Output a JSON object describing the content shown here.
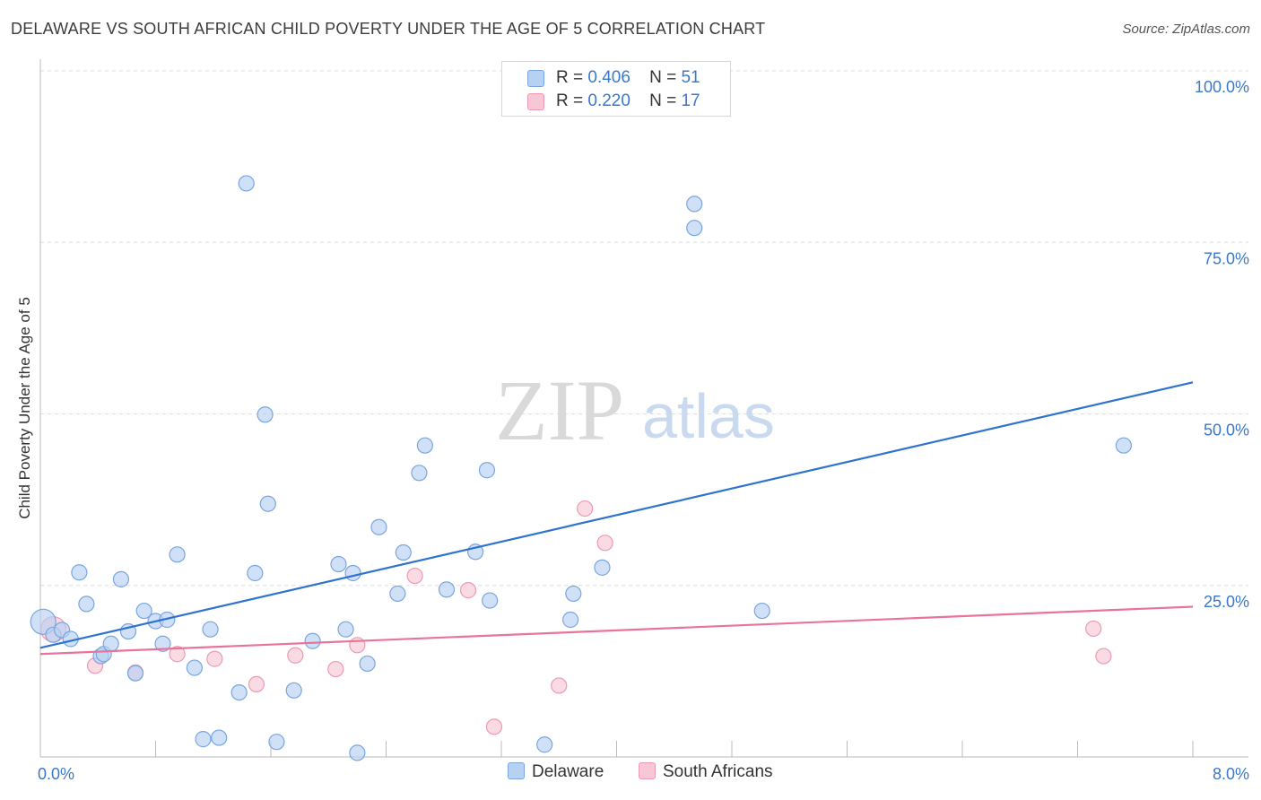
{
  "header": {
    "title": "DELAWARE VS SOUTH AFRICAN CHILD POVERTY UNDER THE AGE OF 5 CORRELATION CHART",
    "source": "Source: ZipAtlas.com"
  },
  "watermark": {
    "zip": "ZIP",
    "atlas": "atlas"
  },
  "legend_top": [
    {
      "r_label": "R =",
      "r_value": "0.406",
      "n_label": "N =",
      "n_value": "51"
    },
    {
      "r_label": "R =",
      "r_value": "0.220",
      "n_label": "N =",
      "n_value": "17"
    }
  ],
  "legend_bottom": [
    {
      "label": "Delaware"
    },
    {
      "label": "South Africans"
    }
  ],
  "colors": {
    "delaware_fill": "#b7d1f2",
    "delaware_stroke": "#7aa5de",
    "delaware_line": "#2f72cf",
    "sa_fill": "#f8c7d6",
    "sa_stroke": "#ec9ab3",
    "sa_line": "#e8739b",
    "tick_text": "#3a78c9",
    "grid": "#dddddd"
  },
  "chart_data": {
    "type": "scatter",
    "title": "DELAWARE VS SOUTH AFRICAN CHILD POVERTY UNDER THE AGE OF 5 CORRELATION CHART",
    "xlabel": "",
    "ylabel": "Child Poverty Under the Age of 5",
    "xlim": [
      0,
      8
    ],
    "ylim": [
      0,
      100
    ],
    "x_tick_labels": [
      {
        "value": 0,
        "label": "0.0%"
      },
      {
        "value": 8,
        "label": "8.0%"
      }
    ],
    "y_tick_labels": [
      {
        "value": 100,
        "label": "100.0%"
      },
      {
        "value": 75,
        "label": "75.0%"
      },
      {
        "value": 50,
        "label": "50.0%"
      },
      {
        "value": 25,
        "label": "25.0%"
      }
    ],
    "y_gridlines": [
      25,
      50,
      75,
      100
    ],
    "x_minor_ticks": [
      0.8,
      1.6,
      2.4,
      3.2,
      4.0,
      4.8,
      5.6,
      6.4,
      7.2,
      8.0
    ],
    "legend_position": "top-center",
    "series": [
      {
        "name": "Delaware",
        "r": 0.406,
        "n": 51,
        "trend": {
          "x0": 0,
          "y0": 15.9,
          "x1": 8,
          "y1": 54.6
        },
        "points": [
          [
            0.02,
            19.7,
            "large"
          ],
          [
            0.09,
            17.8
          ],
          [
            0.15,
            18.5
          ],
          [
            0.21,
            17.2
          ],
          [
            0.27,
            26.9
          ],
          [
            0.32,
            22.3
          ],
          [
            0.42,
            14.7
          ],
          [
            0.44,
            15.0
          ],
          [
            0.49,
            16.5
          ],
          [
            0.56,
            25.9
          ],
          [
            0.61,
            18.3
          ],
          [
            0.66,
            12.2
          ],
          [
            0.72,
            21.3
          ],
          [
            0.8,
            19.8
          ],
          [
            0.85,
            16.5
          ],
          [
            0.88,
            20.0
          ],
          [
            0.95,
            29.5
          ],
          [
            1.07,
            13.0
          ],
          [
            1.13,
            2.6
          ],
          [
            1.18,
            18.6
          ],
          [
            1.24,
            2.8
          ],
          [
            1.38,
            9.4
          ],
          [
            1.43,
            83.6
          ],
          [
            1.49,
            26.8
          ],
          [
            1.56,
            49.9
          ],
          [
            1.58,
            36.9
          ],
          [
            1.64,
            2.2
          ],
          [
            1.76,
            9.7
          ],
          [
            1.89,
            16.9
          ],
          [
            2.07,
            28.1
          ],
          [
            2.12,
            18.6
          ],
          [
            2.17,
            26.8
          ],
          [
            2.2,
            0.6
          ],
          [
            2.27,
            13.6
          ],
          [
            2.35,
            33.5
          ],
          [
            2.48,
            23.8
          ],
          [
            2.52,
            29.8
          ],
          [
            2.63,
            41.4
          ],
          [
            2.67,
            45.4
          ],
          [
            2.82,
            24.4
          ],
          [
            3.02,
            29.9
          ],
          [
            3.1,
            41.8
          ],
          [
            3.12,
            22.8
          ],
          [
            3.5,
            1.8
          ],
          [
            3.68,
            20.0
          ],
          [
            3.7,
            23.8
          ],
          [
            3.9,
            27.6
          ],
          [
            4.54,
            80.6
          ],
          [
            4.54,
            77.1
          ],
          [
            5.01,
            21.3
          ],
          [
            7.52,
            45.4
          ]
        ]
      },
      {
        "name": "South Africans",
        "r": 0.22,
        "n": 17,
        "trend": {
          "x0": 0,
          "y0": 15.0,
          "x1": 8,
          "y1": 21.9
        },
        "points": [
          [
            0.09,
            18.6,
            "large"
          ],
          [
            0.38,
            13.3
          ],
          [
            0.66,
            12.3
          ],
          [
            0.95,
            15.0
          ],
          [
            1.21,
            14.3
          ],
          [
            1.5,
            10.6
          ],
          [
            1.77,
            14.8
          ],
          [
            2.05,
            12.8
          ],
          [
            2.2,
            16.3
          ],
          [
            2.6,
            26.4
          ],
          [
            2.97,
            24.3
          ],
          [
            3.15,
            4.4
          ],
          [
            3.6,
            10.4
          ],
          [
            3.78,
            36.2
          ],
          [
            3.92,
            31.2
          ],
          [
            7.31,
            18.7
          ],
          [
            7.38,
            14.7
          ]
        ]
      }
    ]
  }
}
